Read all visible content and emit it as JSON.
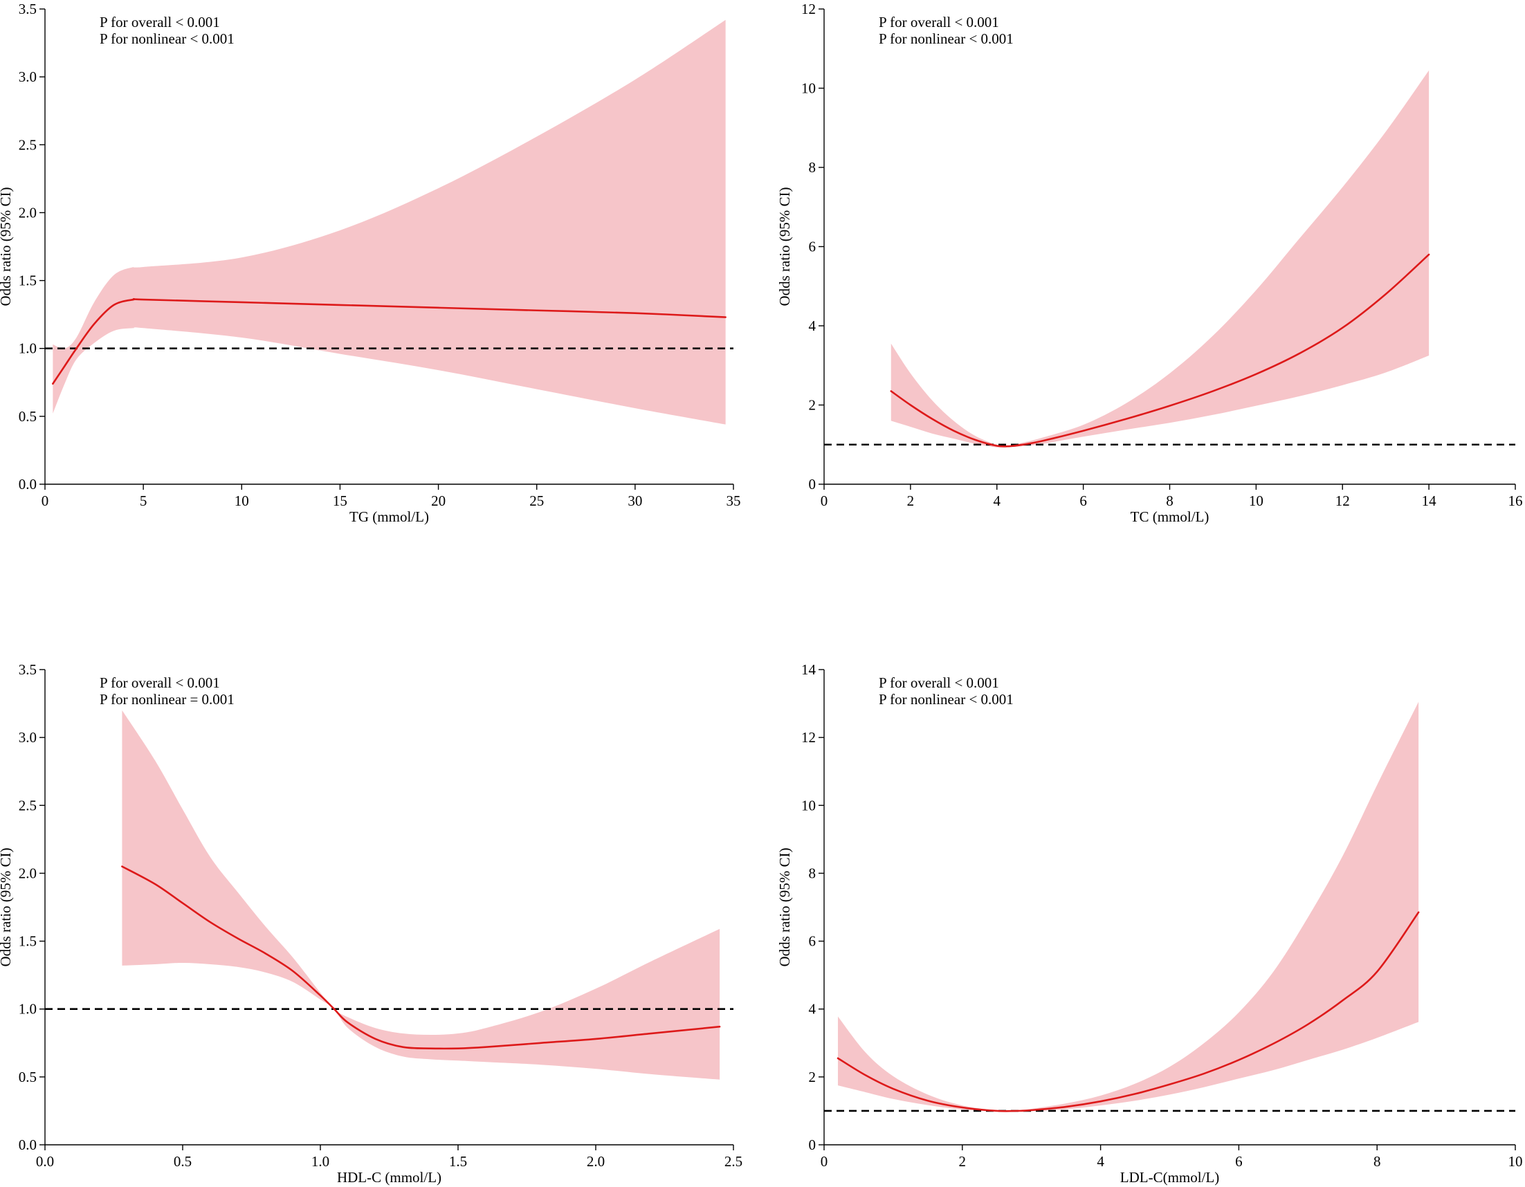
{
  "colors": {
    "ci_band": "#f6c5c9",
    "curve": "#dd1a1a",
    "reference": "#000000"
  },
  "chart_data": [
    {
      "type": "line",
      "id": "tg",
      "xlabel": "TG (mmol/L)",
      "ylabel": "Odds ratio (95% CI)",
      "xlim": [
        0,
        35
      ],
      "ylim": [
        0,
        3.5
      ],
      "xticks": [
        "0",
        "5",
        "10",
        "15",
        "20",
        "25",
        "30",
        "35"
      ],
      "yticks": [
        "0.0",
        "0.5",
        "1.0",
        "1.5",
        "2.0",
        "2.5",
        "3.0",
        "3.5"
      ],
      "reference_y": 1.0,
      "annotation": [
        "P for overall < 0.001",
        "P for nonlinear < 0.001"
      ],
      "series": [
        {
          "name": "Odds ratio",
          "x": [
            0.4,
            1.0,
            1.6,
            2.5,
            3.5,
            4.5,
            5.0,
            10,
            15,
            20,
            25,
            30,
            34.6
          ],
          "y": [
            0.74,
            0.87,
            1.0,
            1.18,
            1.32,
            1.36,
            1.36,
            1.34,
            1.32,
            1.3,
            1.28,
            1.26,
            1.23
          ],
          "lower": [
            0.52,
            0.74,
            0.92,
            1.04,
            1.13,
            1.15,
            1.15,
            1.08,
            0.96,
            0.84,
            0.7,
            0.56,
            0.44
          ],
          "upper": [
            1.03,
            1.0,
            1.08,
            1.34,
            1.54,
            1.6,
            1.6,
            1.67,
            1.87,
            2.18,
            2.56,
            2.98,
            3.42
          ]
        }
      ]
    },
    {
      "type": "line",
      "id": "tc",
      "xlabel": "TC (mmol/L)",
      "ylabel": "Odds ratio (95% CI)",
      "xlim": [
        0,
        16
      ],
      "ylim": [
        0,
        12
      ],
      "xticks": [
        "0",
        "2",
        "4",
        "6",
        "8",
        "10",
        "12",
        "14",
        "16"
      ],
      "yticks": [
        "0",
        "2",
        "4",
        "6",
        "8",
        "10",
        "12"
      ],
      "reference_y": 1.0,
      "annotation": [
        "P for overall < 0.001",
        "P for nonlinear < 0.001"
      ],
      "series": [
        {
          "name": "Odds ratio",
          "x": [
            1.55,
            2.0,
            2.5,
            3.0,
            3.5,
            4.0,
            4.3,
            4.6,
            5.0,
            6.0,
            7.0,
            8.0,
            9.0,
            10.0,
            11.0,
            12.0,
            13.0,
            14.0
          ],
          "y": [
            2.35,
            2.0,
            1.65,
            1.35,
            1.12,
            0.97,
            0.96,
            1.0,
            1.08,
            1.35,
            1.65,
            1.98,
            2.35,
            2.78,
            3.3,
            3.95,
            4.8,
            5.8
          ],
          "lower": [
            1.6,
            1.45,
            1.28,
            1.15,
            1.02,
            0.93,
            0.94,
            0.96,
            1.01,
            1.2,
            1.38,
            1.55,
            1.75,
            1.98,
            2.22,
            2.5,
            2.82,
            3.25
          ],
          "upper": [
            3.55,
            2.8,
            2.12,
            1.6,
            1.22,
            1.0,
            0.98,
            1.05,
            1.16,
            1.5,
            2.05,
            2.8,
            3.75,
            4.9,
            6.2,
            7.5,
            8.9,
            10.45
          ]
        }
      ]
    },
    {
      "type": "line",
      "id": "hdl",
      "xlabel": "HDL-C (mmol/L)",
      "ylabel": "Odds ratio (95% CI)",
      "xlim": [
        0,
        2.5
      ],
      "ylim": [
        0,
        3.5
      ],
      "xticks": [
        "0.0",
        "0.5",
        "1.0",
        "1.5",
        "2.0",
        "2.5"
      ],
      "yticks": [
        "0.0",
        "0.5",
        "1.0",
        "1.5",
        "2.0",
        "2.5",
        "3.0",
        "3.5"
      ],
      "reference_y": 1.0,
      "annotation": [
        "P for overall < 0.001",
        "P for nonlinear = 0.001"
      ],
      "series": [
        {
          "name": "Odds ratio",
          "x": [
            0.28,
            0.4,
            0.5,
            0.6,
            0.7,
            0.8,
            0.9,
            1.0,
            1.05,
            1.1,
            1.2,
            1.3,
            1.4,
            1.5,
            1.6,
            1.8,
            2.0,
            2.2,
            2.45
          ],
          "y": [
            2.05,
            1.92,
            1.78,
            1.64,
            1.52,
            1.41,
            1.28,
            1.1,
            1.0,
            0.9,
            0.78,
            0.72,
            0.71,
            0.71,
            0.72,
            0.75,
            0.78,
            0.82,
            0.87
          ],
          "lower": [
            1.32,
            1.33,
            1.34,
            1.33,
            1.31,
            1.27,
            1.2,
            1.07,
            1.0,
            0.86,
            0.72,
            0.65,
            0.63,
            0.62,
            0.61,
            0.59,
            0.56,
            0.52,
            0.48
          ],
          "upper": [
            3.2,
            2.83,
            2.47,
            2.12,
            1.86,
            1.61,
            1.38,
            1.12,
            1.0,
            0.94,
            0.86,
            0.82,
            0.81,
            0.82,
            0.86,
            0.98,
            1.15,
            1.35,
            1.59
          ]
        }
      ]
    },
    {
      "type": "line",
      "id": "ldl",
      "xlabel": "LDL-C(mmol/L)",
      "ylabel": "Odds ratio (95% CI)",
      "xlim": [
        0,
        10
      ],
      "ylim": [
        0,
        14
      ],
      "xticks": [
        "0",
        "2",
        "4",
        "6",
        "8",
        "10"
      ],
      "yticks": [
        "0",
        "2",
        "4",
        "6",
        "8",
        "10",
        "12",
        "14"
      ],
      "reference_y": 1.0,
      "annotation": [
        "P for overall < 0.001",
        "P for nonlinear < 0.001"
      ],
      "series": [
        {
          "name": "Odds ratio",
          "x": [
            0.2,
            0.6,
            1.0,
            1.5,
            2.0,
            2.5,
            2.8,
            3.0,
            3.5,
            4.0,
            4.5,
            5.0,
            5.5,
            6.0,
            6.5,
            7.0,
            7.5,
            8.0,
            8.6
          ],
          "y": [
            2.55,
            2.05,
            1.65,
            1.3,
            1.1,
            1.0,
            1.0,
            1.02,
            1.12,
            1.28,
            1.5,
            1.78,
            2.1,
            2.5,
            2.98,
            3.55,
            4.25,
            5.1,
            6.85
          ],
          "lower": [
            1.75,
            1.55,
            1.35,
            1.17,
            1.04,
            0.98,
            0.98,
            0.99,
            1.05,
            1.16,
            1.3,
            1.48,
            1.7,
            1.95,
            2.2,
            2.5,
            2.8,
            3.15,
            3.62
          ],
          "upper": [
            3.78,
            2.72,
            2.02,
            1.48,
            1.16,
            1.02,
            1.02,
            1.06,
            1.22,
            1.45,
            1.8,
            2.3,
            3.0,
            3.9,
            5.1,
            6.7,
            8.5,
            10.6,
            13.05
          ]
        }
      ]
    }
  ]
}
